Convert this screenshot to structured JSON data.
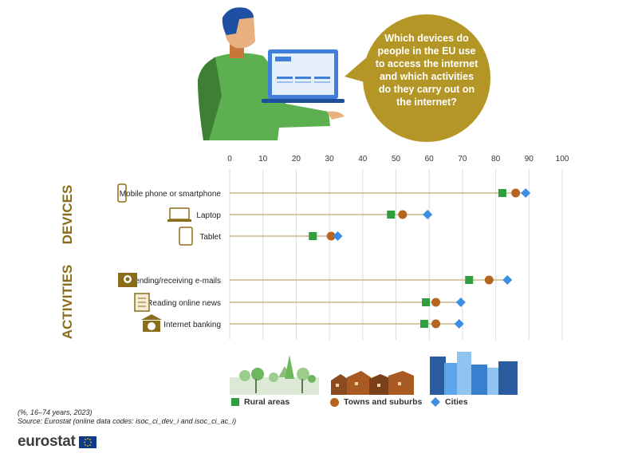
{
  "bubble": {
    "text": "Which devices do people in the EU use to access the internet and which activities do they carry out on the internet?"
  },
  "chart_data": {
    "type": "dot-plot",
    "xlim": [
      0,
      100
    ],
    "xticks": [
      0,
      10,
      20,
      30,
      40,
      50,
      60,
      70,
      80,
      90,
      100
    ],
    "grid": true,
    "groups": [
      {
        "label": "DEVICES",
        "items": [
          "Mobile phone or smartphone",
          "Laptop",
          "Tablet"
        ]
      },
      {
        "label": "ACTIVITIES",
        "items": [
          "Sending/receiving e-mails",
          "Reading online news",
          "Internet banking"
        ]
      }
    ],
    "categories": [
      "Mobile phone or smartphone",
      "Laptop",
      "Tablet",
      "Sending/receiving e-mails",
      "Reading online news",
      "Internet banking"
    ],
    "category_icons": [
      "smartphone-icon",
      "laptop-icon",
      "tablet-icon",
      "email-icon",
      "newspaper-icon",
      "bank-icon"
    ],
    "series": [
      {
        "name": "Rural areas",
        "marker": "square",
        "color": "#2e9e3f",
        "values": [
          82,
          48.5,
          25,
          72,
          59,
          58.5
        ]
      },
      {
        "name": "Towns and suburbs",
        "marker": "circle",
        "color": "#b5651d",
        "values": [
          86,
          52,
          30.5,
          78,
          62,
          62
        ]
      },
      {
        "name": "Cities",
        "marker": "diamond",
        "color": "#3a8ee6",
        "values": [
          89,
          59.5,
          32.5,
          83.5,
          69.5,
          69
        ]
      }
    ]
  },
  "legend": {
    "rural": "Rural areas",
    "towns": "Towns and suburbs",
    "cities": "Cities"
  },
  "footnote": {
    "unit": "(%, 16–74 years, 2023)",
    "source": "Source: Eurostat (online data codes: isoc_ci_dev_i and isoc_ci_ac_i)"
  },
  "logo": {
    "text": "eurostat"
  },
  "colors": {
    "rural": "#2e9e3f",
    "towns": "#b5651d",
    "cities": "#3a8ee6",
    "group_label": "#8a6d1a",
    "bubble": "#b49626",
    "line": "#c9b88a"
  }
}
